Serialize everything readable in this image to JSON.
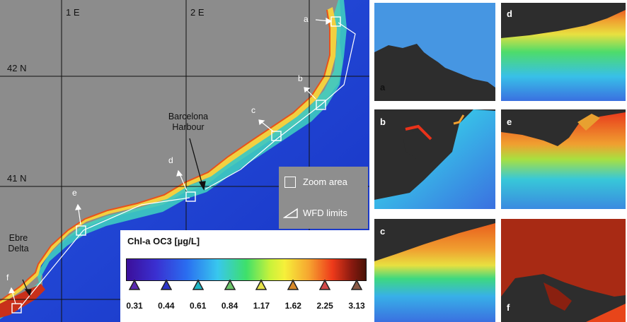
{
  "map": {
    "grid": {
      "lon_labels": [
        "1 E",
        "2 E"
      ],
      "lat_labels": [
        "42 N",
        "41 N"
      ]
    },
    "zoom_letters": [
      "a",
      "b",
      "c",
      "d",
      "e",
      "f"
    ],
    "places": {
      "barcelona_line1": "Barcelona",
      "barcelona_line2": "Harbour",
      "ebre_line1": "Ebre",
      "ebre_line2": "Delta"
    },
    "legend": {
      "zoom_area": "Zoom area",
      "wfd_limits": "WFD limits"
    }
  },
  "colorbar": {
    "title": "Chl-a OC3 [µg/L]",
    "ticks": [
      "0.31",
      "0.44",
      "0.61",
      "0.84",
      "1.17",
      "1.62",
      "2.25",
      "3.13"
    ],
    "tick_colors": [
      "#5a2bb0",
      "#2d36c8",
      "#1fb6c4",
      "#6cc46a",
      "#e6e24a",
      "#d88a2a",
      "#d24a4a",
      "#8a5a46"
    ]
  },
  "panels": [
    "a",
    "b",
    "c",
    "d",
    "e",
    "f"
  ],
  "colors": {
    "land": "#8c8c8c",
    "sea": "#1f3fd6",
    "coast_high": "#e8321a"
  }
}
